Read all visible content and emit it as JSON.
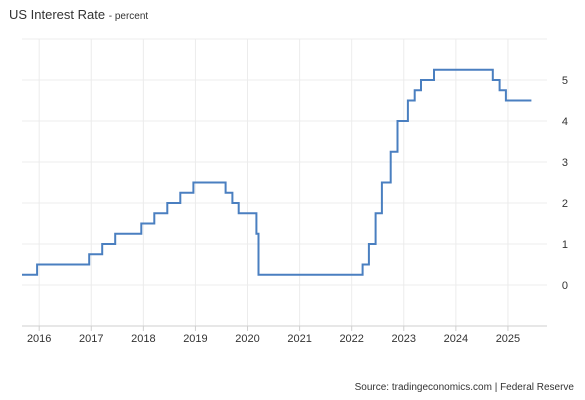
{
  "header": {
    "title": "US Interest Rate",
    "subtitle": "- percent"
  },
  "footer": {
    "source": "Source: tradingeconomics.com | Federal Reserve"
  },
  "chart_data": {
    "type": "line",
    "title": "US Interest Rate",
    "subtitle": "- percent",
    "xlabel": "",
    "ylabel": "",
    "xlim": [
      2015.67,
      2025.75
    ],
    "ylim": [
      -1,
      6
    ],
    "x_ticks": [
      "2016",
      "2017",
      "2018",
      "2019",
      "2020",
      "2021",
      "2022",
      "2023",
      "2024",
      "2025"
    ],
    "y_ticks": [
      "0",
      "1",
      "2",
      "3",
      "4",
      "5"
    ],
    "grid": true,
    "step": true,
    "line_color": "#4a7fc0",
    "series": [
      {
        "x": [
          2015.67,
          2015.96,
          2016.96,
          2017.21,
          2017.46,
          2017.96,
          2018.21,
          2018.46,
          2018.71,
          2018.96,
          2019.58,
          2019.71,
          2019.83,
          2020.17,
          2020.21,
          2022.21,
          2022.33,
          2022.46,
          2022.58,
          2022.75,
          2022.88,
          2023.08,
          2023.21,
          2023.33,
          2023.58,
          2024.71,
          2024.84,
          2024.96,
          2025.45
        ],
        "y": [
          0.25,
          0.5,
          0.75,
          1.0,
          1.25,
          1.5,
          1.75,
          2.0,
          2.25,
          2.5,
          2.25,
          2.0,
          1.75,
          1.25,
          0.25,
          0.5,
          1.0,
          1.75,
          2.5,
          3.25,
          4.0,
          4.5,
          4.75,
          5.0,
          5.25,
          5.0,
          4.75,
          4.5,
          4.5
        ]
      }
    ]
  }
}
